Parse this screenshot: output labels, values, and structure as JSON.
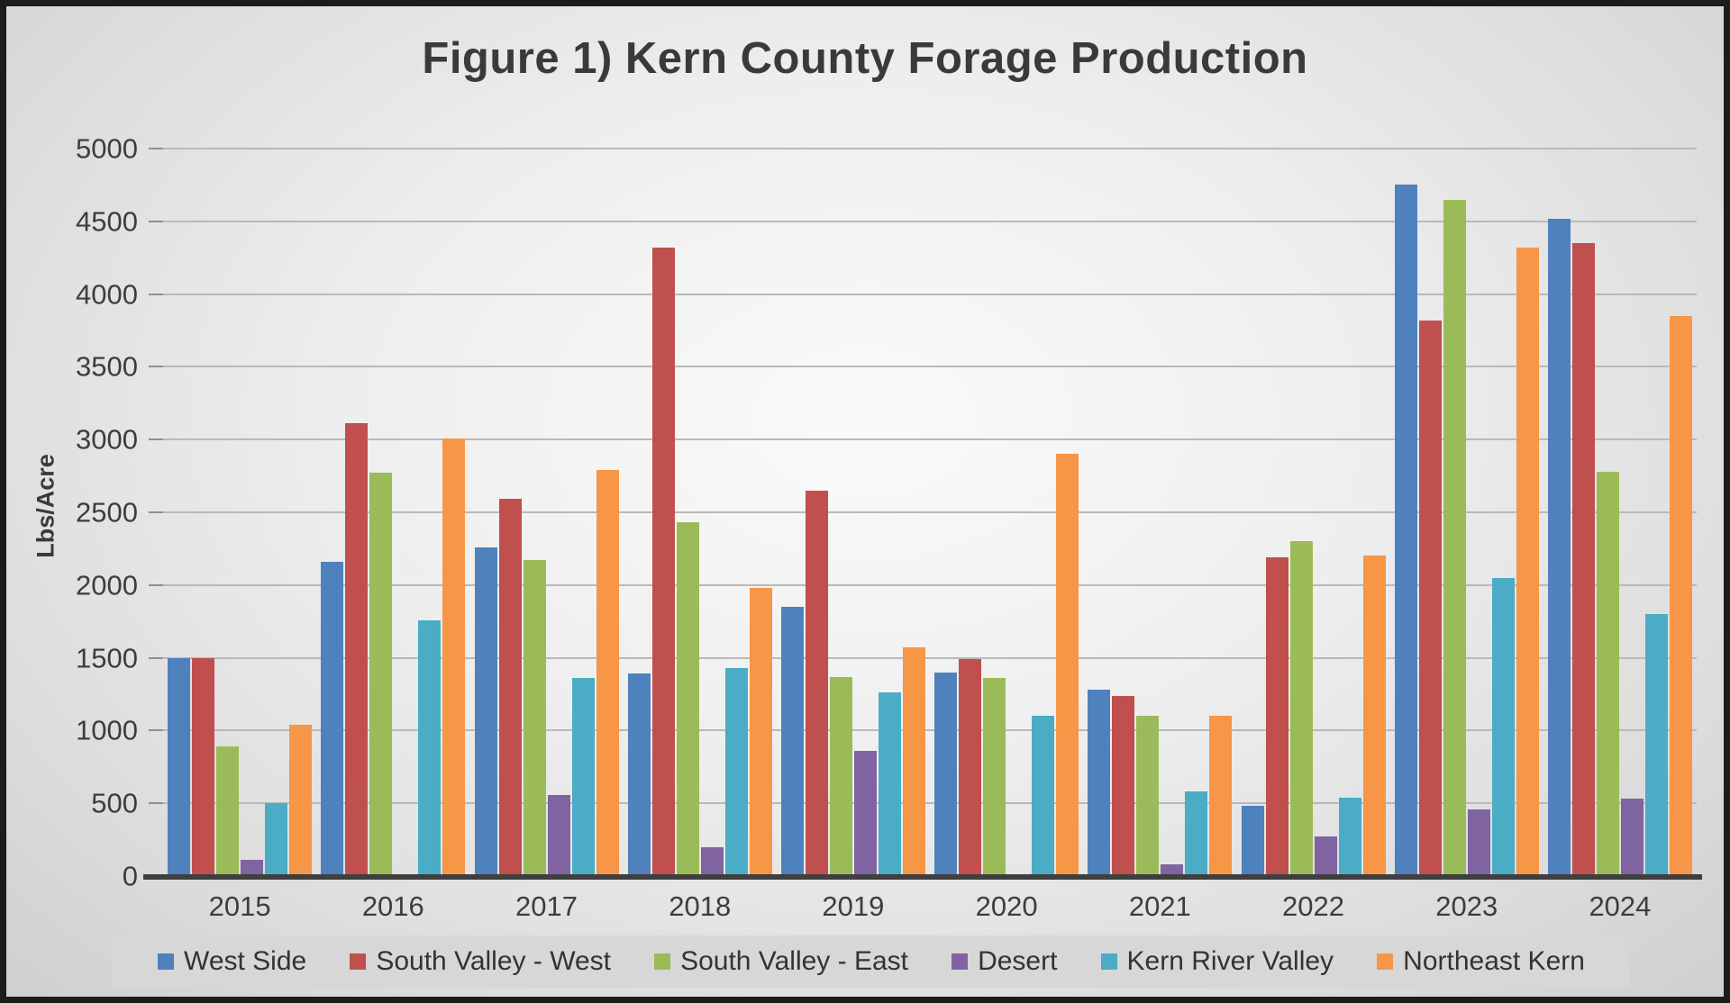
{
  "chart_data": {
    "type": "bar",
    "title": "Figure 1) Kern County Forage Production",
    "xlabel": "",
    "ylabel": "Lbs/Acre",
    "ylim": [
      0,
      5000
    ],
    "ytick_step": 500,
    "grid": true,
    "legend_position": "bottom",
    "categories": [
      "2015",
      "2016",
      "2017",
      "2018",
      "2019",
      "2020",
      "2021",
      "2022",
      "2023",
      "2024"
    ],
    "series": [
      {
        "name": "West Side",
        "color": "#4F81BD",
        "values": [
          1500,
          2160,
          2260,
          1390,
          1850,
          1400,
          1280,
          480,
          4750,
          4520
        ]
      },
      {
        "name": "South Valley - West",
        "color": "#C0504D",
        "values": [
          1500,
          3110,
          2590,
          4320,
          2650,
          1490,
          1240,
          2190,
          3820,
          4350
        ]
      },
      {
        "name": "South Valley - East",
        "color": "#9BBB59",
        "values": [
          890,
          2770,
          2170,
          2430,
          1370,
          1360,
          1100,
          2300,
          4650,
          2780
        ]
      },
      {
        "name": "Desert",
        "color": "#8064A2",
        "values": [
          110,
          0,
          560,
          200,
          860,
          0,
          80,
          270,
          460,
          530
        ]
      },
      {
        "name": "Kern River Valley",
        "color": "#4BACC6",
        "values": [
          500,
          1760,
          1360,
          1430,
          1260,
          1100,
          580,
          540,
          2050,
          1800
        ]
      },
      {
        "name": "Northeast Kern",
        "color": "#F79646",
        "values": [
          1040,
          3010,
          2790,
          1980,
          1570,
          2900,
          1100,
          2200,
          4320,
          3850
        ]
      }
    ]
  }
}
